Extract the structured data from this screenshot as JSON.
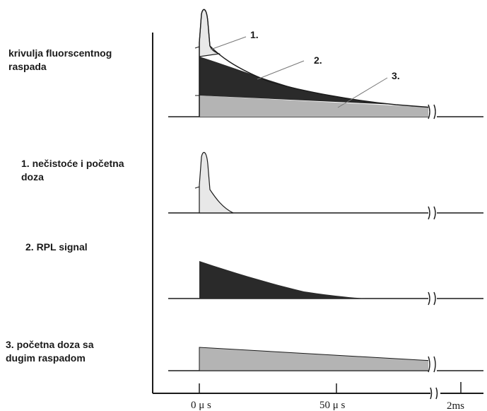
{
  "labels": {
    "decay_curve": [
      "krivulja  fluorscentnog",
      "raspada"
    ],
    "impurities": [
      "1. nečistoće i početna",
      "doza"
    ],
    "rpl_signal": [
      "2. RPL signal"
    ],
    "long_decay": [
      "3. početna doza sa",
      "dugim raspadom"
    ]
  },
  "callouts": [
    "1.",
    "2.",
    "3."
  ],
  "axis": {
    "ticks": [
      "0 μ s",
      "50 μ s",
      "2ms"
    ]
  },
  "colors": {
    "impurity_fill": "#e8e8e8",
    "rpl_fill": "#2a2a2a",
    "long_decay_fill": "#b4b4b4",
    "line": "#1a1a1a"
  }
}
